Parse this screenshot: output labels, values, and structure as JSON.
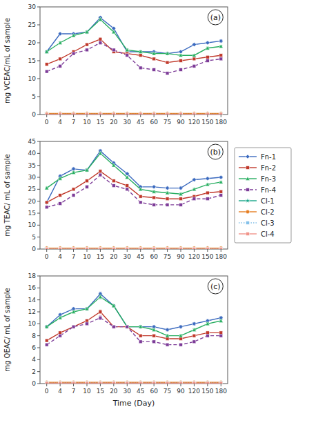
{
  "chart_data": [
    {
      "type": "line",
      "title": "(a)",
      "y_label": "mg VCEAC/mL of sample",
      "categories": [
        "0",
        "4",
        "7",
        "10",
        "15",
        "20",
        "30",
        "45",
        "60",
        "75",
        "90",
        "120",
        "150",
        "180"
      ],
      "ylim": [
        0,
        30
      ],
      "yticks": [
        0,
        5,
        10,
        15,
        20,
        25,
        30
      ],
      "grid": false,
      "series": [
        {
          "name": "Fn-1",
          "color": "#3B6ABF",
          "marker": "diamond",
          "line_style": "solid",
          "values": [
            17.5,
            22.5,
            22.5,
            23.0,
            27.0,
            24.0,
            17.5,
            17.5,
            17.5,
            17.0,
            17.5,
            19.5,
            20.0,
            20.5
          ],
          "errors": [
            0.3,
            0.3,
            0.3,
            0.3,
            0.4,
            0.3,
            0.3,
            0.3,
            0.3,
            0.3,
            0.3,
            0.3,
            0.3,
            0.3
          ]
        },
        {
          "name": "Fn-2",
          "color": "#C0392B",
          "marker": "square",
          "line_style": "solid",
          "values": [
            14.0,
            15.5,
            17.5,
            19.5,
            21.0,
            17.5,
            17.0,
            16.5,
            15.5,
            14.5,
            15.0,
            15.5,
            16.0,
            16.5
          ],
          "errors": [
            0.3,
            0.3,
            0.3,
            0.3,
            0.4,
            0.3,
            0.3,
            0.3,
            0.3,
            0.3,
            0.3,
            0.3,
            0.3,
            0.3
          ]
        },
        {
          "name": "Fn-3",
          "color": "#27AE60",
          "marker": "triangle",
          "line_style": "solid",
          "values": [
            17.5,
            20.0,
            22.0,
            23.0,
            26.5,
            23.0,
            18.0,
            17.5,
            17.0,
            17.0,
            16.5,
            16.5,
            18.5,
            19.0
          ],
          "errors": [
            0.3,
            0.3,
            0.3,
            0.3,
            0.4,
            0.3,
            0.3,
            0.3,
            0.3,
            0.3,
            0.3,
            0.3,
            0.3,
            0.3
          ]
        },
        {
          "name": "Fn-4",
          "color": "#7D3C98",
          "marker": "square",
          "line_style": "dashed",
          "values": [
            12.0,
            13.5,
            17.0,
            18.0,
            20.0,
            18.0,
            16.5,
            13.0,
            12.5,
            11.5,
            12.5,
            13.5,
            15.0,
            15.5
          ],
          "errors": [
            0.3,
            0.3,
            0.3,
            0.3,
            0.4,
            0.3,
            0.3,
            0.3,
            0.3,
            0.3,
            0.3,
            0.3,
            0.3,
            0.3
          ]
        },
        {
          "name": "Cl-1",
          "color": "#17A589",
          "marker": "star",
          "line_style": "solid",
          "values": [
            0.2,
            0.2,
            0.2,
            0.2,
            0.2,
            0.2,
            0.2,
            0.2,
            0.2,
            0.2,
            0.2,
            0.2,
            0.2,
            0.2
          ],
          "errors": [
            0.02,
            0.02,
            0.02,
            0.02,
            0.02,
            0.02,
            0.02,
            0.02,
            0.02,
            0.02,
            0.02,
            0.02,
            0.02,
            0.02
          ]
        },
        {
          "name": "Cl-2",
          "color": "#E67E22",
          "marker": "circle",
          "line_style": "solid",
          "values": [
            0.3,
            0.3,
            0.3,
            0.3,
            0.3,
            0.3,
            0.3,
            0.3,
            0.3,
            0.3,
            0.3,
            0.3,
            0.3,
            0.3
          ],
          "errors": [
            0.02,
            0.02,
            0.02,
            0.02,
            0.02,
            0.02,
            0.02,
            0.02,
            0.02,
            0.02,
            0.02,
            0.02,
            0.02,
            0.02
          ]
        },
        {
          "name": "Cl-3",
          "color": "#85C1E9",
          "marker": "square",
          "line_style": "dotted",
          "values": [
            0.1,
            0.1,
            0.1,
            0.1,
            0.1,
            0.1,
            0.1,
            0.1,
            0.1,
            0.1,
            0.1,
            0.1,
            0.1,
            0.1
          ],
          "errors": [
            0.02,
            0.02,
            0.02,
            0.02,
            0.02,
            0.02,
            0.02,
            0.02,
            0.02,
            0.02,
            0.02,
            0.02,
            0.02,
            0.02
          ]
        },
        {
          "name": "Cl-4",
          "color": "#F1948A",
          "marker": "square",
          "line_style": "solid",
          "values": [
            0.05,
            0.05,
            0.05,
            0.05,
            0.05,
            0.05,
            0.05,
            0.05,
            0.05,
            0.05,
            0.05,
            0.05,
            0.05,
            0.05
          ],
          "errors": [
            0.02,
            0.02,
            0.02,
            0.02,
            0.02,
            0.02,
            0.02,
            0.02,
            0.02,
            0.02,
            0.02,
            0.02,
            0.02,
            0.02
          ]
        }
      ]
    },
    {
      "type": "line",
      "title": "(b)",
      "y_label": "mg TEAC/ mL of sample",
      "categories": [
        "0",
        "4",
        "7",
        "10",
        "15",
        "20",
        "30",
        "45",
        "60",
        "75",
        "90",
        "120",
        "150",
        "180"
      ],
      "ylim": [
        0,
        45
      ],
      "yticks": [
        0,
        5,
        10,
        15,
        20,
        25,
        30,
        35,
        40,
        45
      ],
      "grid": false,
      "legend": "right",
      "series": [
        {
          "name": "Fn-1",
          "color": "#3B6ABF",
          "marker": "diamond",
          "line_style": "solid",
          "values": [
            19.5,
            30.5,
            33.5,
            33.0,
            41.0,
            36.0,
            31.5,
            26.0,
            26.0,
            25.5,
            25.5,
            29.0,
            29.5,
            30.0
          ],
          "errors": [
            0.4,
            0.4,
            0.5,
            0.5,
            0.6,
            0.4,
            0.4,
            0.4,
            0.4,
            0.4,
            0.4,
            0.4,
            0.4,
            0.4
          ]
        },
        {
          "name": "Fn-2",
          "color": "#C0392B",
          "marker": "square",
          "line_style": "solid",
          "values": [
            19.5,
            22.5,
            25.0,
            28.5,
            32.5,
            28.5,
            26.5,
            22.0,
            21.5,
            21.0,
            21.0,
            22.0,
            23.5,
            24.0
          ],
          "errors": [
            0.4,
            0.4,
            0.5,
            0.5,
            0.6,
            0.4,
            0.4,
            0.4,
            0.4,
            0.4,
            0.4,
            0.4,
            0.4,
            0.4
          ]
        },
        {
          "name": "Fn-3",
          "color": "#27AE60",
          "marker": "triangle",
          "line_style": "solid",
          "values": [
            25.5,
            29.5,
            32.0,
            33.0,
            40.0,
            35.0,
            30.0,
            25.0,
            24.0,
            23.5,
            23.0,
            25.0,
            27.0,
            28.0
          ],
          "errors": [
            0.4,
            0.4,
            0.5,
            0.5,
            0.6,
            0.4,
            0.4,
            0.4,
            0.4,
            0.4,
            0.4,
            0.4,
            0.4,
            0.4
          ]
        },
        {
          "name": "Fn-4",
          "color": "#7D3C98",
          "marker": "square",
          "line_style": "dashed",
          "values": [
            17.5,
            19.0,
            22.5,
            26.0,
            31.0,
            26.5,
            25.0,
            19.5,
            18.5,
            18.5,
            18.5,
            21.0,
            21.0,
            22.5
          ],
          "errors": [
            0.4,
            0.4,
            0.5,
            0.5,
            0.6,
            0.4,
            0.4,
            0.4,
            0.4,
            0.4,
            0.4,
            0.4,
            0.4,
            0.4
          ]
        },
        {
          "name": "Cl-1",
          "color": "#17A589",
          "marker": "star",
          "line_style": "solid",
          "values": [
            0.3,
            0.3,
            0.3,
            0.3,
            0.3,
            0.3,
            0.3,
            0.3,
            0.3,
            0.3,
            0.3,
            0.3,
            0.3,
            0.3
          ],
          "errors": [
            0.02,
            0.02,
            0.02,
            0.02,
            0.02,
            0.02,
            0.02,
            0.02,
            0.02,
            0.02,
            0.02,
            0.02,
            0.02,
            0.02
          ]
        },
        {
          "name": "Cl-2",
          "color": "#E67E22",
          "marker": "circle",
          "line_style": "solid",
          "values": [
            0.4,
            0.4,
            0.4,
            0.4,
            0.4,
            0.4,
            0.4,
            0.4,
            0.4,
            0.4,
            0.4,
            0.4,
            0.4,
            0.4
          ],
          "errors": [
            0.02,
            0.02,
            0.02,
            0.02,
            0.02,
            0.02,
            0.02,
            0.02,
            0.02,
            0.02,
            0.02,
            0.02,
            0.02,
            0.02
          ]
        },
        {
          "name": "Cl-3",
          "color": "#85C1E9",
          "marker": "square",
          "line_style": "dotted",
          "values": [
            0.1,
            0.1,
            0.1,
            0.1,
            0.1,
            0.1,
            0.1,
            0.1,
            0.1,
            0.1,
            0.1,
            0.1,
            0.1,
            0.1
          ],
          "errors": [
            0.02,
            0.02,
            0.02,
            0.02,
            0.02,
            0.02,
            0.02,
            0.02,
            0.02,
            0.02,
            0.02,
            0.02,
            0.02,
            0.02
          ]
        },
        {
          "name": "Cl-4",
          "color": "#F1948A",
          "marker": "square",
          "line_style": "solid",
          "values": [
            0.05,
            0.05,
            0.05,
            0.05,
            0.05,
            0.05,
            0.05,
            0.05,
            0.05,
            0.05,
            0.05,
            0.05,
            0.05,
            0.05
          ],
          "errors": [
            0.02,
            0.02,
            0.02,
            0.02,
            0.02,
            0.02,
            0.02,
            0.02,
            0.02,
            0.02,
            0.02,
            0.02,
            0.02,
            0.02
          ]
        }
      ]
    },
    {
      "type": "line",
      "title": "(c)",
      "y_label": "mg QEAC/ mL of sample",
      "x_label": "Time (Day)",
      "categories": [
        "0",
        "4",
        "7",
        "10",
        "15",
        "20",
        "30",
        "45",
        "60",
        "75",
        "90",
        "120",
        "150",
        "180"
      ],
      "ylim": [
        0,
        18
      ],
      "yticks": [
        0,
        2,
        4,
        6,
        8,
        10,
        12,
        14,
        16,
        18
      ],
      "grid": false,
      "series": [
        {
          "name": "Fn-1",
          "color": "#3B6ABF",
          "marker": "diamond",
          "line_style": "solid",
          "values": [
            9.5,
            11.5,
            12.5,
            12.5,
            15.0,
            13.0,
            9.5,
            9.5,
            9.5,
            9.0,
            9.5,
            10.0,
            10.5,
            11.0
          ],
          "errors": [
            0.2,
            0.2,
            0.2,
            0.2,
            0.3,
            0.2,
            0.2,
            0.2,
            0.2,
            0.2,
            0.2,
            0.2,
            0.2,
            0.2
          ]
        },
        {
          "name": "Fn-2",
          "color": "#C0392B",
          "marker": "square",
          "line_style": "solid",
          "values": [
            7.2,
            8.5,
            9.5,
            10.5,
            12.0,
            9.5,
            9.5,
            8.0,
            8.0,
            7.5,
            7.5,
            8.0,
            8.5,
            8.5
          ],
          "errors": [
            0.2,
            0.2,
            0.2,
            0.2,
            0.3,
            0.2,
            0.2,
            0.2,
            0.2,
            0.2,
            0.2,
            0.2,
            0.2,
            0.2
          ]
        },
        {
          "name": "Fn-3",
          "color": "#27AE60",
          "marker": "triangle",
          "line_style": "solid",
          "values": [
            9.5,
            11.0,
            12.0,
            12.5,
            14.5,
            13.0,
            9.5,
            9.5,
            9.0,
            8.0,
            8.0,
            9.0,
            10.0,
            10.5
          ],
          "errors": [
            0.2,
            0.2,
            0.2,
            0.2,
            0.3,
            0.2,
            0.2,
            0.2,
            0.2,
            0.2,
            0.2,
            0.2,
            0.2,
            0.2
          ]
        },
        {
          "name": "Fn-4",
          "color": "#7D3C98",
          "marker": "square",
          "line_style": "dashed",
          "values": [
            6.5,
            8.0,
            9.5,
            10.0,
            11.0,
            9.5,
            9.5,
            7.0,
            7.0,
            6.5,
            6.5,
            7.0,
            8.0,
            8.0
          ],
          "errors": [
            0.2,
            0.2,
            0.2,
            0.2,
            0.3,
            0.2,
            0.2,
            0.2,
            0.2,
            0.2,
            0.2,
            0.2,
            0.2,
            0.2
          ]
        },
        {
          "name": "Cl-1",
          "color": "#17A589",
          "marker": "star",
          "line_style": "solid",
          "values": [
            0.15,
            0.15,
            0.15,
            0.15,
            0.15,
            0.15,
            0.15,
            0.15,
            0.15,
            0.15,
            0.15,
            0.15,
            0.15,
            0.15
          ],
          "errors": [
            0.02,
            0.02,
            0.02,
            0.02,
            0.02,
            0.02,
            0.02,
            0.02,
            0.02,
            0.02,
            0.02,
            0.02,
            0.02,
            0.02
          ]
        },
        {
          "name": "Cl-2",
          "color": "#E67E22",
          "marker": "circle",
          "line_style": "solid",
          "values": [
            0.2,
            0.2,
            0.2,
            0.2,
            0.2,
            0.2,
            0.2,
            0.2,
            0.2,
            0.2,
            0.2,
            0.2,
            0.2,
            0.2
          ],
          "errors": [
            0.02,
            0.02,
            0.02,
            0.02,
            0.02,
            0.02,
            0.02,
            0.02,
            0.02,
            0.02,
            0.02,
            0.02,
            0.02,
            0.02
          ]
        },
        {
          "name": "Cl-3",
          "color": "#85C1E9",
          "marker": "square",
          "line_style": "dotted",
          "values": [
            0.1,
            0.1,
            0.1,
            0.1,
            0.1,
            0.1,
            0.1,
            0.1,
            0.1,
            0.1,
            0.1,
            0.1,
            0.1,
            0.1
          ],
          "errors": [
            0.02,
            0.02,
            0.02,
            0.02,
            0.02,
            0.02,
            0.02,
            0.02,
            0.02,
            0.02,
            0.02,
            0.02,
            0.02,
            0.02
          ]
        },
        {
          "name": "Cl-4",
          "color": "#F1948A",
          "marker": "square",
          "line_style": "solid",
          "values": [
            0.05,
            0.05,
            0.05,
            0.05,
            0.05,
            0.05,
            0.05,
            0.05,
            0.05,
            0.05,
            0.05,
            0.05,
            0.05,
            0.05
          ],
          "errors": [
            0.02,
            0.02,
            0.02,
            0.02,
            0.02,
            0.02,
            0.02,
            0.02,
            0.02,
            0.02,
            0.02,
            0.02,
            0.02,
            0.02
          ]
        }
      ]
    }
  ]
}
